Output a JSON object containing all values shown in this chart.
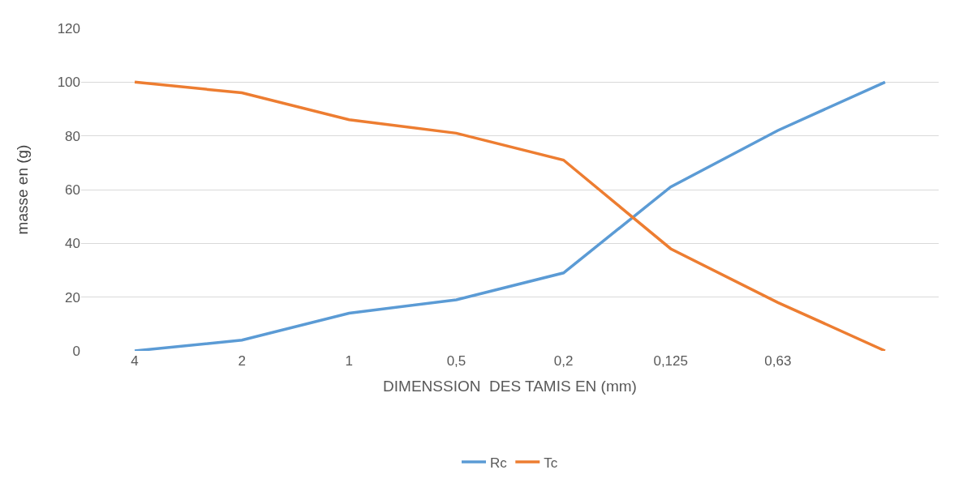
{
  "chart_data": {
    "type": "line",
    "xlabel": "DIMENSSION  DES TAMIS EN (mm)",
    "ylabel": "masse en (g)",
    "categories": [
      "4",
      "2",
      "1",
      "0,5",
      "0,2",
      "0,125",
      "0,63",
      null
    ],
    "series": [
      {
        "name": "Rc",
        "color": "#5b9bd5",
        "values": [
          0,
          4,
          14,
          19,
          29,
          61,
          82,
          100
        ]
      },
      {
        "name": "Tc",
        "color": "#ed7d31",
        "values": [
          100,
          96,
          86,
          81,
          71,
          38,
          18,
          0
        ]
      }
    ],
    "ylim": [
      0,
      120
    ],
    "yticks": [
      0,
      20,
      40,
      60,
      80,
      100,
      120
    ],
    "grid": "y",
    "legend": "bottom",
    "marker": "none",
    "line_style": "solid"
  }
}
